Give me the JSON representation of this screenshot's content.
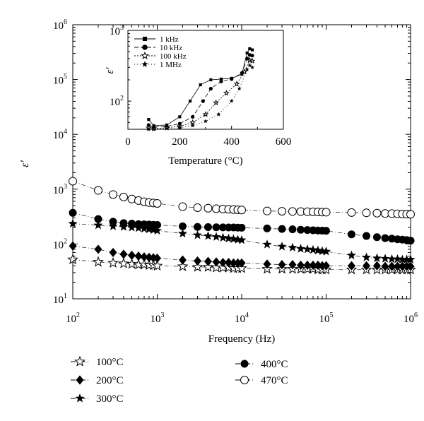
{
  "chart_data": [
    {
      "id": "main",
      "type": "scatter",
      "xscale": "log",
      "yscale": "log",
      "xlim": [
        100,
        1000000
      ],
      "ylim": [
        10,
        1000000
      ],
      "xlabel": "Frequency (Hz)",
      "ylabel": "ε′",
      "x_ticks": [
        {
          "base": "10",
          "exp": "2",
          "value": 100
        },
        {
          "base": "10",
          "exp": "3",
          "value": 1000
        },
        {
          "base": "10",
          "exp": "4",
          "value": 10000
        },
        {
          "base": "10",
          "exp": "5",
          "value": 100000
        },
        {
          "base": "10",
          "exp": "6",
          "value": 1000000
        }
      ],
      "y_ticks": [
        {
          "base": "10",
          "exp": "1",
          "value": 10
        },
        {
          "base": "10",
          "exp": "2",
          "value": 100
        },
        {
          "base": "10",
          "exp": "3",
          "value": 1000
        },
        {
          "base": "10",
          "exp": "4",
          "value": 10000
        },
        {
          "base": "10",
          "exp": "5",
          "value": 100000
        },
        {
          "base": "10",
          "exp": "6",
          "value": 1000000
        }
      ],
      "x": [
        100,
        200,
        300,
        400,
        500,
        600,
        700,
        800,
        900,
        1000,
        2000,
        3000,
        4000,
        5000,
        6000,
        7000,
        8000,
        9000,
        10000,
        20000,
        30000,
        40000,
        50000,
        60000,
        70000,
        80000,
        90000,
        100000,
        200000,
        300000,
        400000,
        500000,
        600000,
        700000,
        800000,
        900000,
        1000000
      ],
      "legend_position": "bottom",
      "series": [
        {
          "name": "100°C",
          "marker": "star-open",
          "values": [
            52,
            47,
            45,
            44,
            43,
            42,
            42,
            41,
            41,
            40,
            39,
            38,
            38,
            37,
            37,
            37,
            36,
            36,
            36,
            35,
            35,
            35,
            35,
            35,
            35,
            34,
            34,
            34,
            34,
            34,
            34,
            34,
            34,
            34,
            34,
            34,
            34
          ]
        },
        {
          "name": "200°C",
          "marker": "diamond",
          "values": [
            92,
            80,
            70,
            65,
            62,
            60,
            58,
            57,
            56,
            55,
            51,
            49,
            48,
            47,
            46,
            46,
            45,
            45,
            45,
            43,
            42,
            42,
            41,
            41,
            41,
            41,
            40,
            40,
            40,
            40,
            40,
            39,
            39,
            39,
            39,
            39,
            39
          ]
        },
        {
          "name": "300°C",
          "marker": "star",
          "values": [
            235,
            220,
            210,
            205,
            200,
            195,
            190,
            185,
            180,
            175,
            155,
            145,
            140,
            135,
            130,
            126,
            123,
            120,
            118,
            98,
            90,
            86,
            82,
            80,
            78,
            76,
            74,
            73,
            62,
            57,
            55,
            54,
            53,
            53,
            52,
            52,
            52
          ]
        },
        {
          "name": "400°C",
          "marker": "circle",
          "values": [
            370,
            285,
            255,
            240,
            235,
            230,
            228,
            226,
            224,
            222,
            210,
            205,
            203,
            202,
            201,
            200,
            200,
            199,
            198,
            192,
            188,
            185,
            182,
            180,
            178,
            176,
            175,
            174,
            150,
            140,
            133,
            128,
            125,
            122,
            120,
            118,
            115
          ]
        },
        {
          "name": "470°C",
          "marker": "circle-open",
          "values": [
            1400,
            950,
            800,
            720,
            660,
            620,
            590,
            570,
            560,
            550,
            480,
            460,
            450,
            440,
            435,
            430,
            425,
            420,
            418,
            400,
            395,
            392,
            390,
            388,
            386,
            384,
            382,
            380,
            375,
            370,
            365,
            360,
            358,
            355,
            352,
            350,
            348
          ]
        }
      ]
    },
    {
      "id": "inset",
      "type": "line",
      "yscale": "log",
      "xlim": [
        0,
        600
      ],
      "ylim": [
        40,
        1000
      ],
      "xlabel": "Temperature (°C)",
      "ylabel": "ε′",
      "x_ticks": [
        "0",
        "200",
        "400",
        "600"
      ],
      "x_tick_values": [
        0,
        200,
        400,
        600
      ],
      "y_ticks": [
        {
          "base": "10",
          "exp": "2",
          "value": 100
        },
        {
          "base": "10",
          "exp": "3",
          "value": 1000
        }
      ],
      "legend_position": "top-left",
      "series": [
        {
          "name": "1 kHz",
          "marker": "square",
          "x": [
            80,
            100,
            150,
            200,
            240,
            280,
            320,
            360,
            400,
            440,
            460,
            470,
            480
          ],
          "values": [
            55,
            45,
            46,
            60,
            100,
            170,
            200,
            205,
            210,
            240,
            480,
            550,
            530
          ]
        },
        {
          "name": "10 kHz",
          "marker": "circle",
          "x": [
            80,
            100,
            150,
            200,
            250,
            290,
            320,
            360,
            400,
            440,
            460,
            470,
            480
          ],
          "values": [
            46,
            43,
            44,
            48,
            60,
            100,
            150,
            190,
            205,
            250,
            400,
            450,
            440
          ]
        },
        {
          "name": "100 kHz",
          "marker": "star-open",
          "x": [
            80,
            100,
            150,
            200,
            250,
            300,
            340,
            380,
            420,
            450,
            470,
            480
          ],
          "values": [
            42,
            41,
            42,
            44,
            50,
            65,
            95,
            130,
            175,
            260,
            380,
            370
          ]
        },
        {
          "name": "1 MHz",
          "marker": "star",
          "x": [
            80,
            100,
            150,
            200,
            250,
            300,
            350,
            400,
            430,
            460,
            470,
            480
          ],
          "values": [
            40,
            40,
            41,
            42,
            45,
            52,
            65,
            100,
            150,
            280,
            320,
            300
          ]
        }
      ]
    }
  ]
}
